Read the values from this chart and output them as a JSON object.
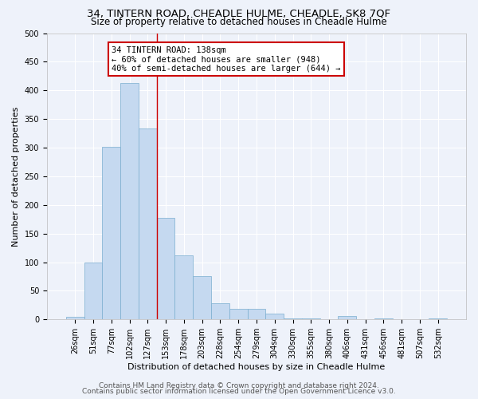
{
  "title": "34, TINTERN ROAD, CHEADLE HULME, CHEADLE, SK8 7QF",
  "subtitle": "Size of property relative to detached houses in Cheadle Hulme",
  "xlabel": "Distribution of detached houses by size in Cheadle Hulme",
  "ylabel": "Number of detached properties",
  "bar_labels": [
    "26sqm",
    "51sqm",
    "77sqm",
    "102sqm",
    "127sqm",
    "153sqm",
    "178sqm",
    "203sqm",
    "228sqm",
    "254sqm",
    "279sqm",
    "304sqm",
    "330sqm",
    "355sqm",
    "380sqm",
    "406sqm",
    "431sqm",
    "456sqm",
    "481sqm",
    "507sqm",
    "532sqm"
  ],
  "bar_values": [
    4,
    99,
    302,
    413,
    333,
    178,
    112,
    76,
    28,
    18,
    18,
    10,
    2,
    2,
    0,
    6,
    0,
    2,
    0,
    0,
    2
  ],
  "bar_color": "#c5d9f0",
  "bar_edge_color": "#7aadcf",
  "vline_x_index": 4,
  "vline_color": "#cc0000",
  "annotation_text": "34 TINTERN ROAD: 138sqm\n← 60% of detached houses are smaller (948)\n40% of semi-detached houses are larger (644) →",
  "annotation_box_color": "#ffffff",
  "annotation_box_edgecolor": "#cc0000",
  "ylim": [
    0,
    500
  ],
  "yticks": [
    0,
    50,
    100,
    150,
    200,
    250,
    300,
    350,
    400,
    450,
    500
  ],
  "footer1": "Contains HM Land Registry data © Crown copyright and database right 2024.",
  "footer2": "Contains public sector information licensed under the Open Government Licence v3.0.",
  "background_color": "#eef2fa",
  "grid_color": "#ffffff",
  "title_fontsize": 9.5,
  "subtitle_fontsize": 8.5,
  "axis_label_fontsize": 8,
  "tick_fontsize": 7,
  "annotation_fontsize": 7.5,
  "footer_fontsize": 6.5
}
